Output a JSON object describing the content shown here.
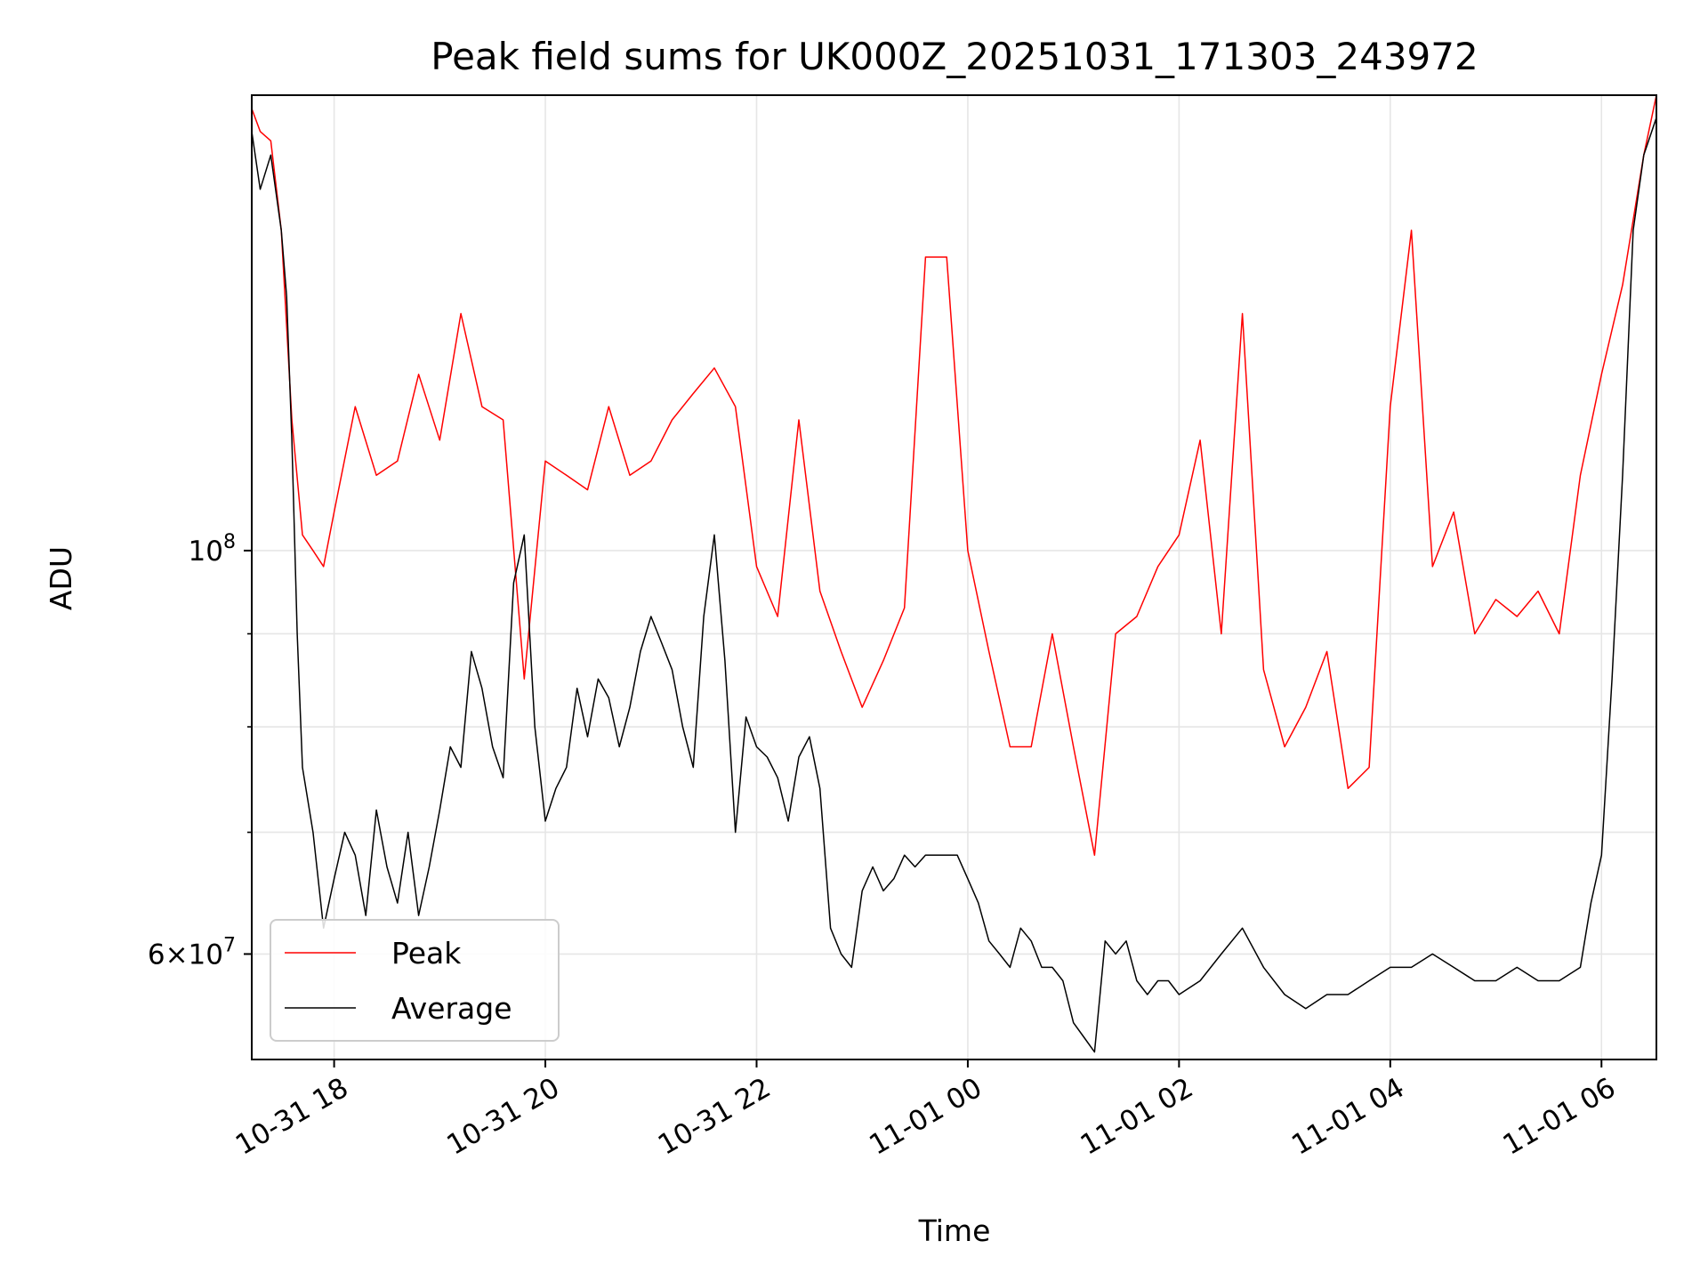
{
  "chart_data": {
    "type": "line",
    "title": "Peak field sums for UK000Z_20251031_171303_243972",
    "xlabel": "Time",
    "ylabel": "ADU",
    "yscale": "log",
    "xlim_hours": [
      -0.78,
      12.52
    ],
    "ylim": [
      52500000,
      178000000
    ],
    "grid": true,
    "legend_position": "lower-left",
    "x_ticks": [
      {
        "label": "10-31 18",
        "hours": 0
      },
      {
        "label": "10-31 20",
        "hours": 2
      },
      {
        "label": "10-31 22",
        "hours": 4
      },
      {
        "label": "11-01 00",
        "hours": 6
      },
      {
        "label": "11-01 02",
        "hours": 8
      },
      {
        "label": "11-01 04",
        "hours": 10
      },
      {
        "label": "11-01 06",
        "hours": 12
      }
    ],
    "y_major_ticks": [
      {
        "value": 100000000,
        "base": "10",
        "exp": "8",
        "mant": ""
      },
      {
        "value": 60000000,
        "base": "10",
        "exp": "7",
        "mant": "6"
      }
    ],
    "y_minor_ticks": [
      70000000,
      80000000,
      90000000
    ],
    "series": [
      {
        "name": "Peak",
        "color": "#ff0000",
        "x_hours": [
          -0.78,
          -0.7,
          -0.6,
          -0.5,
          -0.4,
          -0.3,
          -0.2,
          -0.1,
          0.0,
          0.2,
          0.4,
          0.6,
          0.8,
          1.0,
          1.2,
          1.4,
          1.6,
          1.8,
          2.0,
          2.2,
          2.4,
          2.6,
          2.8,
          3.0,
          3.2,
          3.4,
          3.6,
          3.8,
          4.0,
          4.2,
          4.4,
          4.6,
          4.8,
          5.0,
          5.2,
          5.4,
          5.6,
          5.8,
          6.0,
          6.2,
          6.4,
          6.6,
          6.8,
          7.0,
          7.2,
          7.4,
          7.6,
          7.8,
          8.0,
          8.2,
          8.4,
          8.6,
          8.8,
          9.0,
          9.2,
          9.4,
          9.6,
          9.8,
          10.0,
          10.2,
          10.4,
          10.6,
          10.8,
          11.0,
          11.2,
          11.4,
          11.6,
          11.8,
          12.0,
          12.2,
          12.4,
          12.52
        ],
        "values": [
          175000000,
          170000000,
          168000000,
          150000000,
          118000000,
          102000000,
          100000000,
          98000000,
          105000000,
          120000000,
          110000000,
          112000000,
          125000000,
          115000000,
          135000000,
          120000000,
          118000000,
          85000000,
          112000000,
          110000000,
          108000000,
          120000000,
          110000000,
          112000000,
          118000000,
          122000000,
          126000000,
          120000000,
          98000000,
          92000000,
          118000000,
          95000000,
          88000000,
          82000000,
          87000000,
          93000000,
          145000000,
          145000000,
          100000000,
          88000000,
          78000000,
          78000000,
          90000000,
          78000000,
          68000000,
          90000000,
          92000000,
          98000000,
          102000000,
          115000000,
          90000000,
          135000000,
          86000000,
          78000000,
          82000000,
          88000000,
          74000000,
          76000000,
          120000000,
          150000000,
          98000000,
          105000000,
          90000000,
          94000000,
          92000000,
          95000000,
          90000000,
          110000000,
          125000000,
          140000000,
          165000000,
          178000000
        ]
      },
      {
        "name": "Average",
        "color": "#000000",
        "x_hours": [
          -0.78,
          -0.7,
          -0.6,
          -0.5,
          -0.45,
          -0.4,
          -0.35,
          -0.3,
          -0.2,
          -0.1,
          0.0,
          0.1,
          0.2,
          0.3,
          0.4,
          0.5,
          0.6,
          0.7,
          0.8,
          0.9,
          1.0,
          1.1,
          1.2,
          1.3,
          1.4,
          1.5,
          1.6,
          1.7,
          1.8,
          1.9,
          2.0,
          2.1,
          2.2,
          2.3,
          2.4,
          2.5,
          2.6,
          2.7,
          2.8,
          2.9,
          3.0,
          3.1,
          3.2,
          3.3,
          3.4,
          3.5,
          3.6,
          3.7,
          3.8,
          3.9,
          4.0,
          4.1,
          4.2,
          4.3,
          4.4,
          4.5,
          4.6,
          4.7,
          4.8,
          4.9,
          5.0,
          5.1,
          5.2,
          5.3,
          5.4,
          5.5,
          5.6,
          5.7,
          5.8,
          5.9,
          6.0,
          6.1,
          6.2,
          6.3,
          6.4,
          6.5,
          6.6,
          6.7,
          6.8,
          6.9,
          7.0,
          7.1,
          7.2,
          7.3,
          7.4,
          7.5,
          7.6,
          7.7,
          7.8,
          7.9,
          8.0,
          8.2,
          8.4,
          8.6,
          8.8,
          9.0,
          9.2,
          9.4,
          9.6,
          9.8,
          10.0,
          10.2,
          10.4,
          10.6,
          10.8,
          11.0,
          11.2,
          11.4,
          11.6,
          11.8,
          11.9,
          12.0,
          12.1,
          12.2,
          12.3,
          12.4,
          12.52
        ],
        "values": [
          170000000,
          158000000,
          165000000,
          150000000,
          138000000,
          115000000,
          90000000,
          76000000,
          70000000,
          62000000,
          66000000,
          70000000,
          68000000,
          63000000,
          72000000,
          67000000,
          64000000,
          70000000,
          63000000,
          67000000,
          72000000,
          78000000,
          76000000,
          88000000,
          84000000,
          78000000,
          75000000,
          96000000,
          102000000,
          80000000,
          71000000,
          74000000,
          76000000,
          84000000,
          79000000,
          85000000,
          83000000,
          78000000,
          82000000,
          88000000,
          92000000,
          89000000,
          86000000,
          80000000,
          76000000,
          92000000,
          102000000,
          87000000,
          70000000,
          81000000,
          78000000,
          77000000,
          75000000,
          71000000,
          77000000,
          79000000,
          74000000,
          62000000,
          60000000,
          59000000,
          65000000,
          67000000,
          65000000,
          66000000,
          68000000,
          67000000,
          68000000,
          68000000,
          68000000,
          68000000,
          66000000,
          64000000,
          61000000,
          60000000,
          59000000,
          62000000,
          61000000,
          59000000,
          59000000,
          58000000,
          55000000,
          54000000,
          53000000,
          61000000,
          60000000,
          61000000,
          58000000,
          57000000,
          58000000,
          58000000,
          57000000,
          58000000,
          60000000,
          62000000,
          59000000,
          57000000,
          56000000,
          57000000,
          57000000,
          58000000,
          59000000,
          59000000,
          60000000,
          59000000,
          58000000,
          58000000,
          59000000,
          58000000,
          58000000,
          59000000,
          64000000,
          68000000,
          85000000,
          110000000,
          150000000,
          165000000,
          173000000
        ]
      }
    ]
  }
}
